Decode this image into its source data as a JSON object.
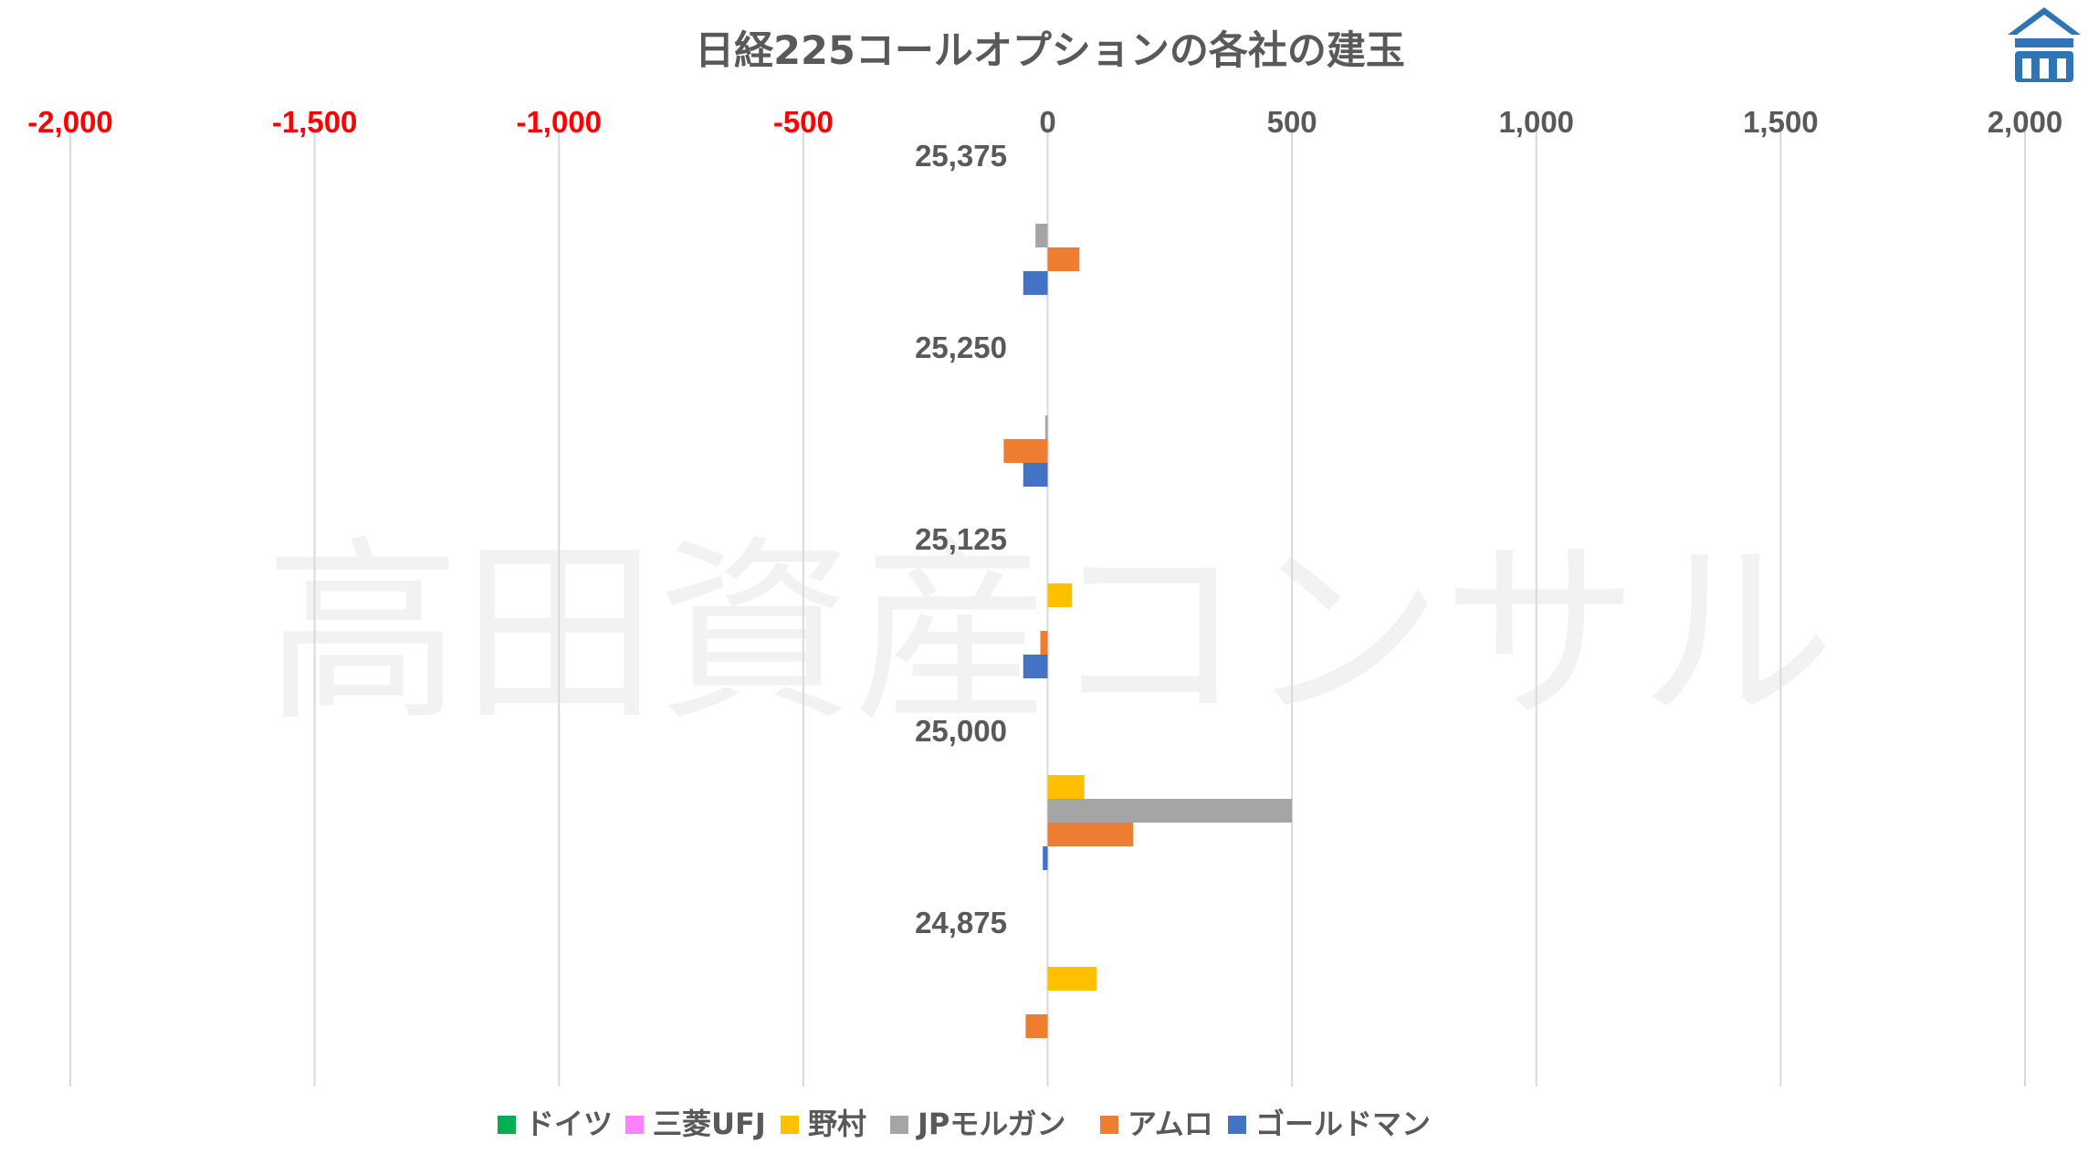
{
  "watermark": "高田資産コンサル",
  "colors": {
    "negative_tick": "#ff0000",
    "positive_tick": "#595959",
    "logo": "#2e75b6"
  },
  "chart_data": {
    "type": "bar",
    "orientation": "horizontal",
    "title": "日経225コールオプションの各社の建玉",
    "xlabel": "",
    "ylabel": "",
    "xlim": [
      -2000,
      2000
    ],
    "x_ticks": [
      -2000,
      -1500,
      -1000,
      -500,
      0,
      500,
      1000,
      1500,
      2000
    ],
    "x_tick_labels": [
      "-2,000",
      "-1,500",
      "-1,000",
      "-500",
      "0",
      "500",
      "1,000",
      "1,500",
      "2,000"
    ],
    "grid": true,
    "legend_position": "bottom",
    "categories": [
      "25,375",
      "25,250",
      "25,125",
      "25,000",
      "24,875"
    ],
    "series": [
      {
        "name": "ドイツ",
        "color": "#00b050",
        "values": [
          0,
          0,
          0,
          0,
          0
        ]
      },
      {
        "name": "三菱UFJ",
        "color": "#ff80ff",
        "values": [
          0,
          0,
          0,
          0,
          0
        ]
      },
      {
        "name": "野村",
        "color": "#ffc000",
        "values": [
          0,
          0,
          50,
          75,
          100
        ]
      },
      {
        "name": "JPモルガン",
        "color": "#a5a5a5",
        "values": [
          -25,
          -5,
          0,
          500,
          0
        ]
      },
      {
        "name": "アムロ",
        "color": "#ed7d31",
        "values": [
          65,
          -90,
          -15,
          175,
          -45
        ]
      },
      {
        "name": "ゴールドマン",
        "color": "#4472c4",
        "values": [
          -50,
          -50,
          -50,
          -10,
          0
        ]
      }
    ]
  }
}
